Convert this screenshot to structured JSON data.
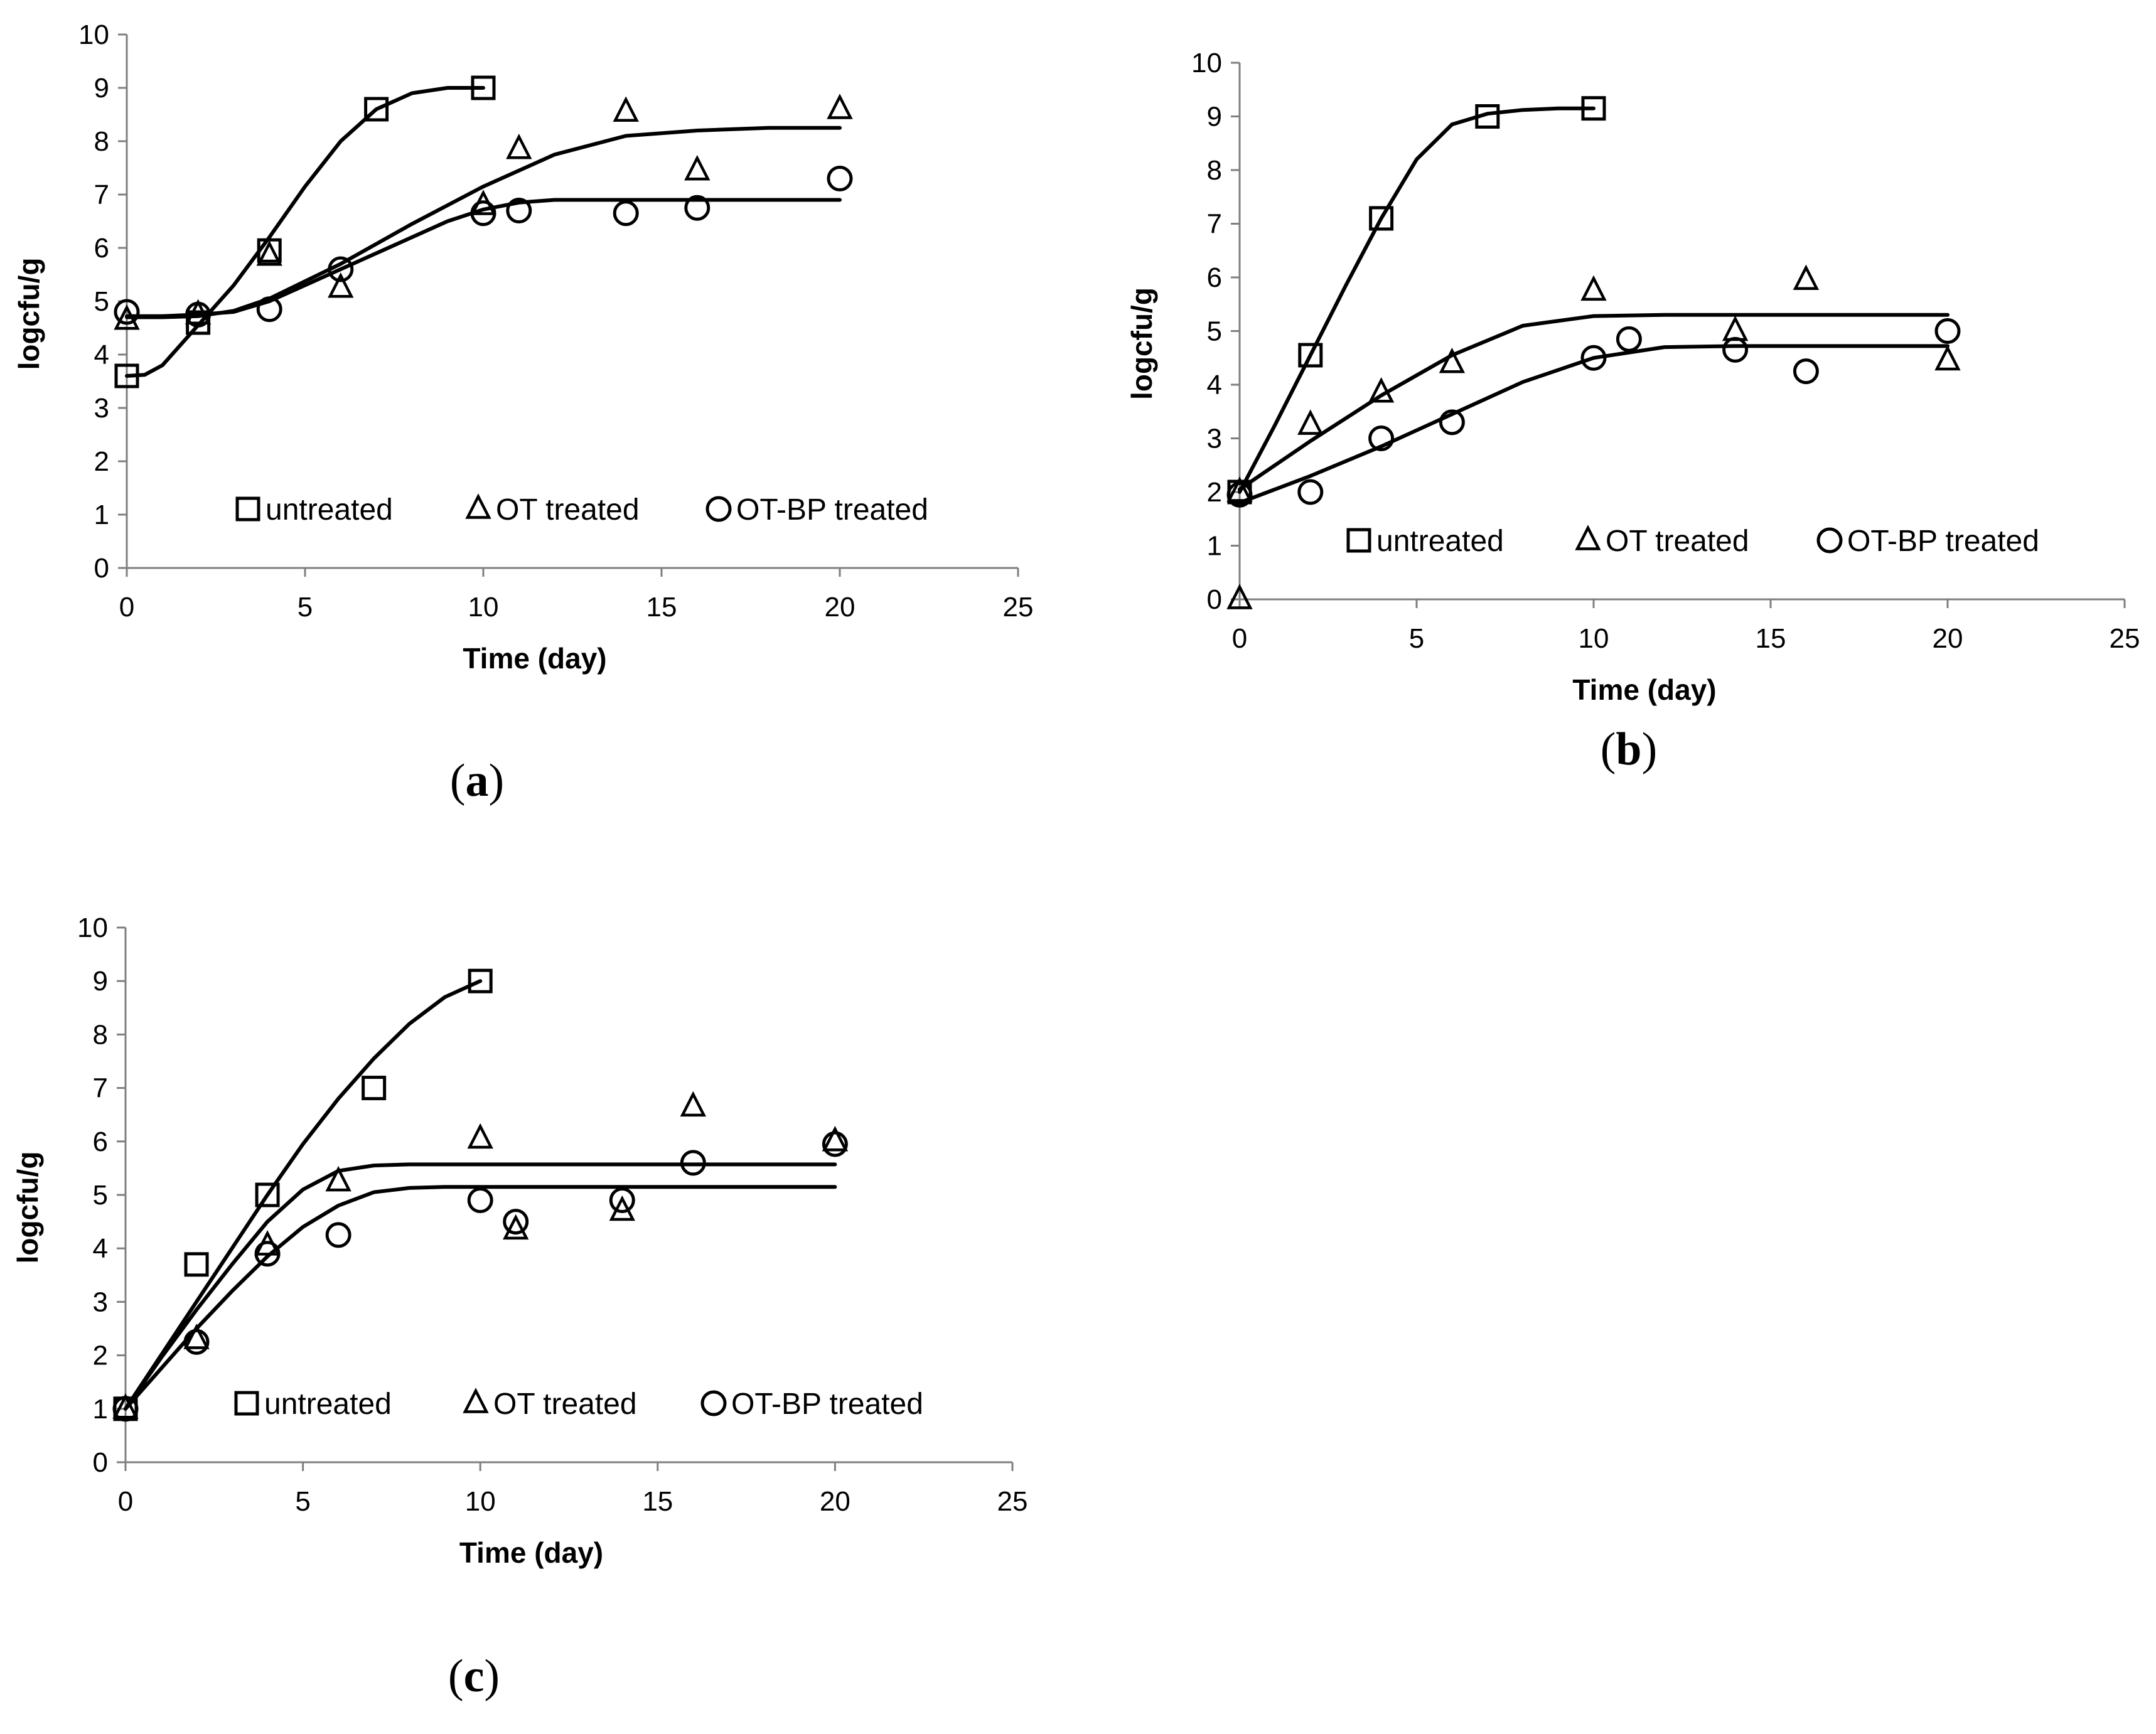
{
  "chart_data": [
    {
      "type": "scatter",
      "panel_label": "(a)",
      "panel_letter": "a",
      "xlabel": "Time (day)",
      "ylabel": "logcfu/g",
      "xlim": [
        0,
        25
      ],
      "ylim": [
        0,
        10
      ],
      "xticks": [
        0,
        5,
        10,
        15,
        20,
        25
      ],
      "yticks": [
        0,
        1,
        2,
        3,
        4,
        5,
        6,
        7,
        8,
        9,
        10
      ],
      "legend_position": "bottom-inside",
      "series": [
        {
          "name": "untreated",
          "marker": "square",
          "x": [
            0,
            2,
            4,
            7,
            10
          ],
          "y": [
            3.6,
            4.6,
            5.95,
            8.6,
            9.0
          ],
          "fit": {
            "x": [
              0,
              0.5,
              1,
              2,
              3,
              4,
              5,
              6,
              7,
              8,
              9,
              10
            ],
            "y": [
              3.6,
              3.62,
              3.8,
              4.55,
              5.3,
              6.2,
              7.15,
              8.0,
              8.6,
              8.9,
              9.0,
              9.0
            ]
          }
        },
        {
          "name": "OT treated",
          "marker": "triangle",
          "x": [
            0,
            2,
            4,
            6,
            10,
            11,
            14,
            16,
            20
          ],
          "y": [
            4.65,
            4.75,
            5.85,
            5.25,
            6.8,
            7.85,
            8.55,
            7.45,
            8.6
          ],
          "fit": {
            "x": [
              0,
              1,
              2,
              3,
              4,
              6,
              8,
              10,
              12,
              14,
              16,
              18,
              20
            ],
            "y": [
              4.7,
              4.7,
              4.72,
              4.82,
              5.05,
              5.7,
              6.45,
              7.15,
              7.75,
              8.1,
              8.2,
              8.25,
              8.25
            ]
          }
        },
        {
          "name": "OT-BP treated",
          "marker": "circle",
          "x": [
            0,
            2,
            4,
            6,
            10,
            11,
            14,
            16,
            20
          ],
          "y": [
            4.8,
            4.75,
            4.85,
            5.6,
            6.65,
            6.7,
            6.65,
            6.75,
            7.3
          ],
          "fit": {
            "x": [
              0,
              1,
              2,
              3,
              4,
              5,
              6,
              7,
              8,
              9,
              10,
              11,
              12,
              14,
              16,
              20
            ],
            "y": [
              4.72,
              4.72,
              4.75,
              4.8,
              5.0,
              5.3,
              5.6,
              5.9,
              6.2,
              6.5,
              6.72,
              6.85,
              6.9,
              6.9,
              6.9,
              6.9
            ]
          }
        }
      ]
    },
    {
      "type": "scatter",
      "panel_label": "(b)",
      "panel_letter": "b",
      "xlabel": "Time (day)",
      "ylabel": "logcfu/g",
      "xlim": [
        0,
        25
      ],
      "ylim": [
        0,
        10
      ],
      "xticks": [
        0,
        5,
        10,
        15,
        20,
        25
      ],
      "yticks": [
        0,
        1,
        2,
        3,
        4,
        5,
        6,
        7,
        8,
        9,
        10
      ],
      "legend_position": "bottom-inside",
      "series": [
        {
          "name": "untreated",
          "marker": "square",
          "x": [
            0,
            2,
            4,
            7,
            10
          ],
          "y": [
            2.0,
            4.55,
            7.1,
            9.0,
            9.15
          ],
          "fit": {
            "x": [
              0,
              1,
              2,
              3,
              4,
              5,
              6,
              7,
              8,
              9,
              10
            ],
            "y": [
              2.0,
              3.25,
              4.55,
              5.85,
              7.1,
              8.2,
              8.85,
              9.05,
              9.12,
              9.15,
              9.15
            ]
          }
        },
        {
          "name": "OT treated",
          "marker": "triangle",
          "x": [
            0,
            0,
            2,
            4,
            6,
            10,
            14,
            16,
            20
          ],
          "y": [
            0.0,
            2.0,
            3.25,
            3.85,
            4.4,
            5.75,
            5.0,
            5.95,
            4.45
          ],
          "fit": {
            "x": [
              0,
              2,
              4,
              6,
              8,
              10,
              12,
              14,
              16,
              18,
              20
            ],
            "y": [
              2.05,
              2.95,
              3.8,
              4.55,
              5.1,
              5.28,
              5.3,
              5.3,
              5.3,
              5.3,
              5.3
            ]
          }
        },
        {
          "name": "OT-BP treated",
          "marker": "circle",
          "x": [
            0,
            2,
            4,
            6,
            10,
            11,
            14,
            16,
            20
          ],
          "y": [
            1.95,
            2.0,
            3.0,
            3.3,
            4.5,
            4.85,
            4.65,
            4.25,
            5.0
          ],
          "fit": {
            "x": [
              0,
              2,
              4,
              6,
              8,
              10,
              12,
              14,
              16,
              18,
              20
            ],
            "y": [
              1.8,
              2.3,
              2.85,
              3.45,
              4.05,
              4.5,
              4.7,
              4.72,
              4.72,
              4.72,
              4.72
            ]
          }
        }
      ]
    },
    {
      "type": "scatter",
      "panel_label": "(c)",
      "panel_letter": "c",
      "xlabel": "Time (day)",
      "ylabel": "logcfu/g",
      "xlim": [
        0,
        25
      ],
      "ylim": [
        0,
        10
      ],
      "xticks": [
        0,
        5,
        10,
        15,
        20,
        25
      ],
      "yticks": [
        0,
        1,
        2,
        3,
        4,
        5,
        6,
        7,
        8,
        9,
        10
      ],
      "legend_position": "bottom-inside",
      "series": [
        {
          "name": "untreated",
          "marker": "square",
          "x": [
            0,
            2,
            4,
            7,
            10
          ],
          "y": [
            1.0,
            3.7,
            5.0,
            7.0,
            9.0
          ],
          "fit": {
            "x": [
              0,
              1,
              2,
              3,
              4,
              5,
              6,
              7,
              8,
              9,
              10
            ],
            "y": [
              1.0,
              2.0,
              3.0,
              4.0,
              5.0,
              5.95,
              6.8,
              7.55,
              8.2,
              8.7,
              9.0
            ]
          }
        },
        {
          "name": "OT treated",
          "marker": "triangle",
          "x": [
            0,
            2,
            4,
            6,
            10,
            11,
            14,
            16,
            20
          ],
          "y": [
            1.0,
            2.3,
            4.05,
            5.25,
            6.05,
            4.35,
            4.7,
            6.65,
            6.0
          ],
          "fit": {
            "x": [
              0,
              1,
              2,
              3,
              4,
              5,
              6,
              7,
              8,
              10,
              12,
              14,
              16,
              20
            ],
            "y": [
              1.0,
              1.95,
              2.85,
              3.7,
              4.5,
              5.1,
              5.45,
              5.55,
              5.57,
              5.57,
              5.57,
              5.57,
              5.57,
              5.57
            ]
          }
        },
        {
          "name": "OT-BP treated",
          "marker": "circle",
          "x": [
            0,
            2,
            4,
            6,
            10,
            11,
            14,
            16,
            20
          ],
          "y": [
            1.0,
            2.25,
            3.9,
            4.25,
            4.9,
            4.5,
            4.9,
            5.6,
            5.95
          ],
          "fit": {
            "x": [
              0,
              1,
              2,
              3,
              4,
              5,
              6,
              7,
              8,
              9,
              10,
              12,
              14,
              16,
              20
            ],
            "y": [
              1.0,
              1.75,
              2.5,
              3.2,
              3.85,
              4.4,
              4.8,
              5.05,
              5.13,
              5.15,
              5.15,
              5.15,
              5.15,
              5.15,
              5.15
            ]
          }
        }
      ]
    }
  ]
}
